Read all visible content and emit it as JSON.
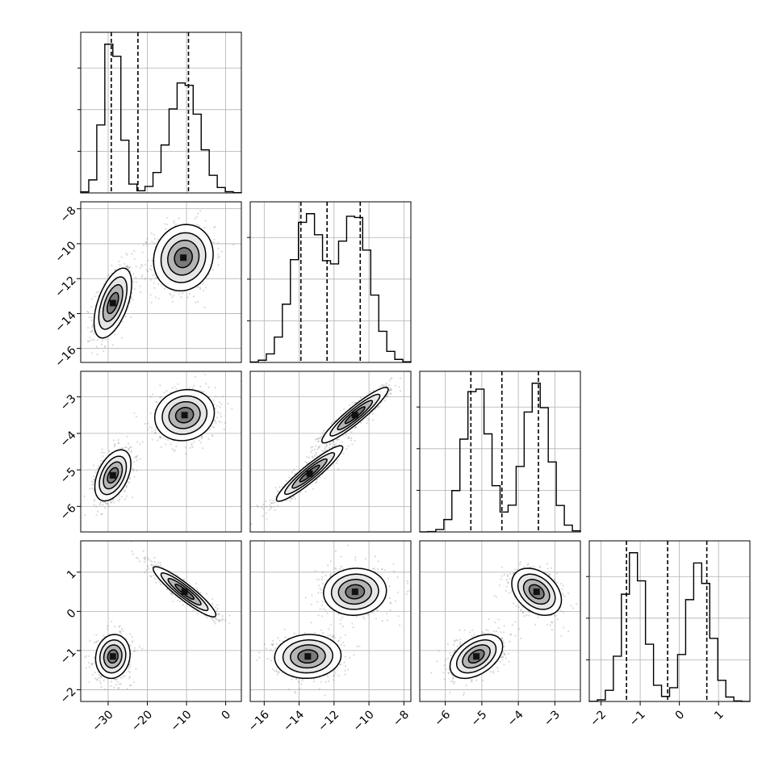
{
  "colors": {
    "line": "#000000",
    "grid": "#b0b0b0",
    "background": "#ffffff",
    "scatter": "#555555"
  },
  "chart_data": {
    "type": "corner",
    "grid": true,
    "parameters": [
      {
        "range": [
          -37,
          4
        ],
        "ticks": [
          -30,
          -20,
          -10,
          0
        ],
        "tick_labels": [
          "−30",
          "−20",
          "−10",
          "0"
        ],
        "components": [
          {
            "mean": -29,
            "sd": 2.2,
            "weight": 0.45
          },
          {
            "mean": -10.5,
            "sd": 3.8,
            "weight": 0.55
          }
        ],
        "quantiles": [
          -29.2,
          -22.4,
          -9.5
        ]
      },
      {
        "range": [
          -16.8,
          -7.6
        ],
        "ticks": [
          -16,
          -14,
          -12,
          -10,
          -8
        ],
        "tick_labels": [
          "−16",
          "−14",
          "−12",
          "−10",
          "−8"
        ],
        "components": [
          {
            "mean": -13.5,
            "sd": 0.9,
            "weight": 0.5
          },
          {
            "mean": -10.8,
            "sd": 0.9,
            "weight": 0.5
          }
        ],
        "quantiles": [
          -13.9,
          -12.4,
          -10.5
        ]
      },
      {
        "range": [
          -6.7,
          -2.3
        ],
        "ticks": [
          -6,
          -5,
          -4,
          -3
        ],
        "tick_labels": [
          "−6",
          "−5",
          "−4",
          "−3"
        ],
        "components": [
          {
            "mean": -5.15,
            "sd": 0.35,
            "weight": 0.5
          },
          {
            "mean": -3.5,
            "sd": 0.35,
            "weight": 0.5
          }
        ],
        "quantiles": [
          -5.3,
          -4.45,
          -3.45
        ]
      },
      {
        "range": [
          -2.3,
          1.8
        ],
        "ticks": [
          -2,
          -1,
          0,
          1
        ],
        "tick_labels": [
          "−2",
          "−1",
          "0",
          "1"
        ],
        "components": [
          {
            "mean": -1.15,
            "sd": 0.28,
            "weight": 0.5
          },
          {
            "mean": 0.5,
            "sd": 0.3,
            "weight": 0.5
          }
        ],
        "quantiles": [
          -1.35,
          -0.3,
          0.7
        ]
      }
    ],
    "pairs": [
      {
        "x": 0,
        "y": 1,
        "blobs": [
          {
            "cx": -28.8,
            "cy": -13.4,
            "sx": 2.4,
            "sy": 1.0,
            "rho": 0.55
          },
          {
            "cx": -10.8,
            "cy": -10.8,
            "sx": 3.8,
            "sy": 0.95,
            "rho": 0.1
          }
        ]
      },
      {
        "x": 0,
        "y": 2,
        "blobs": [
          {
            "cx": -28.8,
            "cy": -5.15,
            "sx": 2.3,
            "sy": 0.35,
            "rho": 0.45
          },
          {
            "cx": -10.5,
            "cy": -3.5,
            "sx": 3.8,
            "sy": 0.35,
            "rho": 0.1
          }
        ]
      },
      {
        "x": 1,
        "y": 2,
        "blobs": [
          {
            "cx": -13.4,
            "cy": -5.1,
            "sx": 0.95,
            "sy": 0.38,
            "rho": 0.93
          },
          {
            "cx": -10.8,
            "cy": -3.5,
            "sx": 0.95,
            "sy": 0.38,
            "rho": 0.93
          }
        ]
      },
      {
        "x": 0,
        "y": 3,
        "blobs": [
          {
            "cx": -28.8,
            "cy": -1.15,
            "sx": 2.2,
            "sy": 0.28,
            "rho": 0.1
          },
          {
            "cx": -10.5,
            "cy": 0.5,
            "sx": 4.0,
            "sy": 0.32,
            "rho": -0.92
          }
        ]
      },
      {
        "x": 1,
        "y": 3,
        "blobs": [
          {
            "cx": -13.5,
            "cy": -1.15,
            "sx": 0.95,
            "sy": 0.28,
            "rho": 0.05
          },
          {
            "cx": -10.8,
            "cy": 0.5,
            "sx": 0.9,
            "sy": 0.3,
            "rho": 0.05
          }
        ]
      },
      {
        "x": 2,
        "y": 3,
        "blobs": [
          {
            "cx": -5.15,
            "cy": -1.15,
            "sx": 0.36,
            "sy": 0.28,
            "rho": 0.45
          },
          {
            "cx": -3.5,
            "cy": 0.5,
            "sx": 0.34,
            "sy": 0.3,
            "rho": -0.35
          }
        ]
      }
    ]
  }
}
